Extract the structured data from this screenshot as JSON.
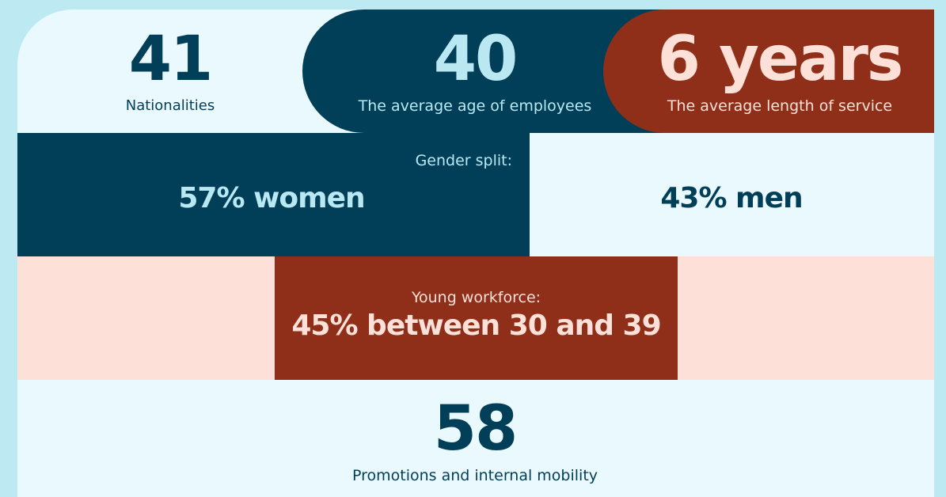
{
  "stats": [
    {
      "value": "41",
      "label": "Nationalities"
    },
    {
      "value": "40",
      "label": "The average age of employees"
    },
    {
      "value": "6 years",
      "label": "The average length of service"
    }
  ],
  "gender": {
    "label": "Gender split:",
    "women": "57% women",
    "men": "43% men"
  },
  "workforce": {
    "label": "Young workforce:",
    "value": "45% between 30 and 39"
  },
  "promotions": {
    "value": "58",
    "label": "Promotions and internal mobility"
  }
}
